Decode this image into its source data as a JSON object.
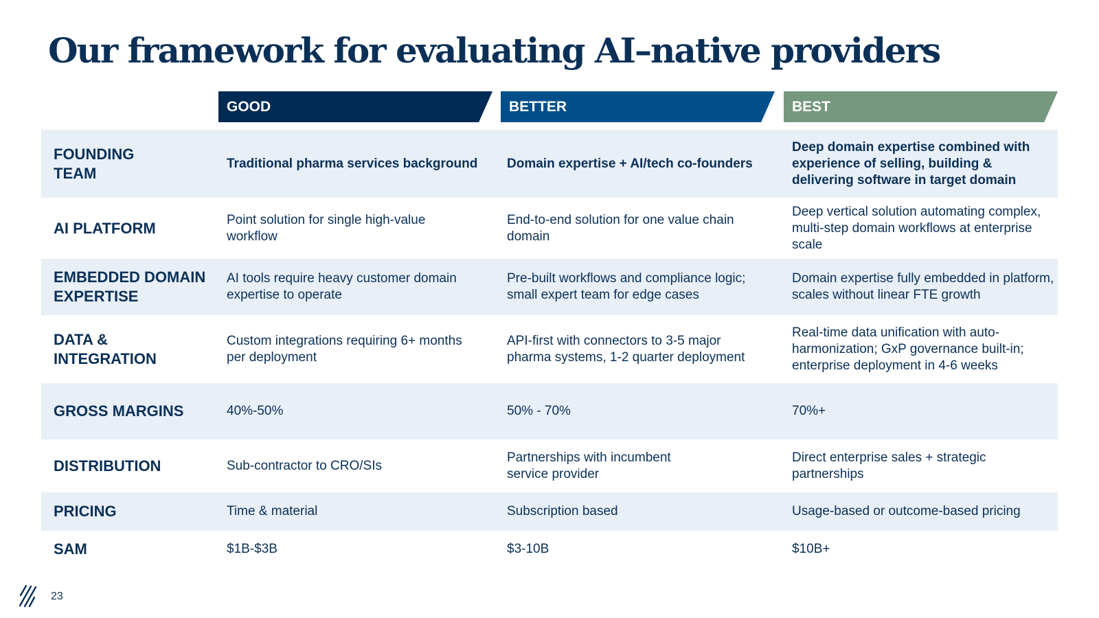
{
  "title": "Our framework for evaluating AI–native providers",
  "columns": {
    "good": "GOOD",
    "better": "BETTER",
    "best": "BEST"
  },
  "rows": [
    {
      "label": "FOUNDING TEAM",
      "good": "Traditional pharma services background",
      "better": "Domain expertise + AI/tech co-founders",
      "best": "Deep domain expertise combined with experience of selling, building & delivering software in target domain"
    },
    {
      "label": "AI PLATFORM",
      "good": "Point solution for single high-value workflow",
      "better": "End-to-end solution for one value chain domain",
      "best": "Deep vertical solution automating complex, multi-step domain workflows at enterprise scale"
    },
    {
      "label": "EMBEDDED DOMAIN EXPERTISE",
      "good": "AI tools require heavy customer domain expertise to operate",
      "better": "Pre-built workflows and compliance logic; small expert team for edge cases",
      "best": "Domain expertise fully embedded in platform, scales without linear FTE growth"
    },
    {
      "label": "DATA & INTEGRATION",
      "good": "Custom integrations requiring 6+ months per deployment",
      "better": "API-first with connectors to 3-5 major pharma systems, 1-2 quarter deployment",
      "best": "Real-time data unification with auto-harmonization; GxP governance built-in; enterprise deployment in 4-6 weeks"
    },
    {
      "label": "GROSS MARGINS",
      "good": "40%-50%",
      "better": "50% - 70%",
      "best": "70%+"
    },
    {
      "label": "DISTRIBUTION",
      "good": "Sub-contractor to CRO/SIs",
      "better": "Partnerships with incumbent service provider",
      "best": "Direct enterprise sales + strategic partnerships"
    },
    {
      "label": "PRICING",
      "good": "Time & material",
      "better": "Subscription based",
      "best": "Usage-based or outcome-based pricing"
    },
    {
      "label": "SAM",
      "good": "$1B-$3B",
      "better": "$3-10B",
      "best": "$10B+"
    }
  ],
  "footer": {
    "page_number": "23"
  },
  "colors": {
    "navy": "#002b54",
    "blue": "#004f8a",
    "green": "#75987e",
    "row_shade": "#e8eff7",
    "text": "#0b3057"
  }
}
